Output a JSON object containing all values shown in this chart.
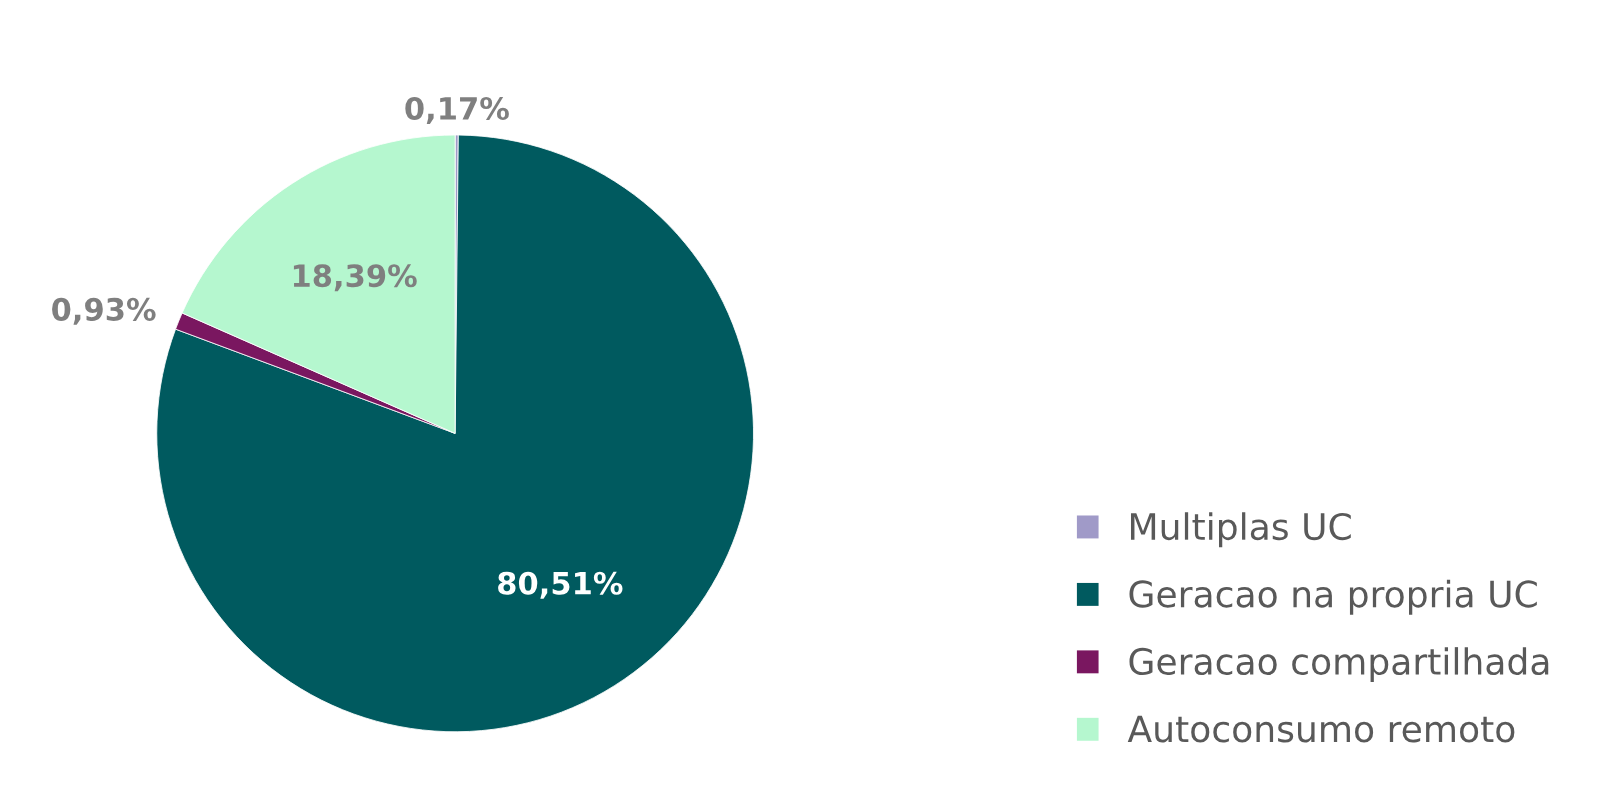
{
  "chart_data": {
    "type": "pie",
    "categories": [
      "Multiplas UC",
      "Geracao na propria UC",
      "Geracao compartilhada",
      "Autoconsumo remoto"
    ],
    "values": [
      0.17,
      80.51,
      0.93,
      18.39
    ],
    "value_labels": [
      "0,17%",
      "80,51%",
      "0,93%",
      "18,39%"
    ],
    "colors": [
      "#a09ac8",
      "#005a5f",
      "#7a1760",
      "#b5f7cf"
    ],
    "legend": "bottom right"
  }
}
